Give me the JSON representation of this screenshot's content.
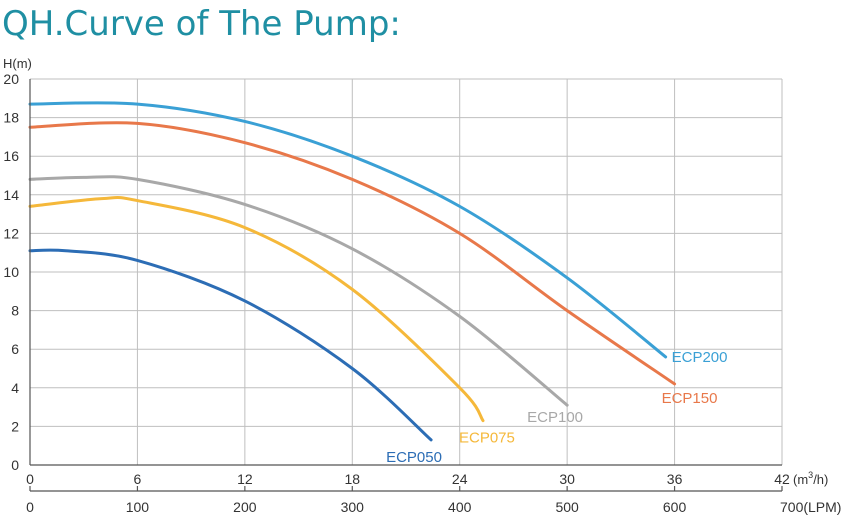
{
  "chart_data": {
    "type": "line",
    "title": "QH.Curve of The Pump:",
    "ylabel": "H(m)",
    "xlabel_m3h": [
      "(m",
      "3",
      "/h)"
    ],
    "xlabel_lpm": "(LPM)",
    "ylim": [
      0,
      20
    ],
    "xlim_m3h": [
      0,
      42
    ],
    "xlim_lpm": [
      0,
      700
    ],
    "yticks": [
      "0",
      "2",
      "4",
      "6",
      "8",
      "10",
      "12",
      "14",
      "16",
      "18",
      "20"
    ],
    "xticks_m3h": [
      "0",
      "6",
      "12",
      "18",
      "24",
      "30",
      "36",
      "42"
    ],
    "xticks_lpm": [
      "0",
      "100",
      "200",
      "300",
      "400",
      "500",
      "600",
      "700"
    ],
    "grid": true,
    "series": [
      {
        "name": "ECP050",
        "color": "#2c6db5",
        "points": [
          [
            0,
            11.1
          ],
          [
            2,
            11.1
          ],
          [
            6,
            10.6
          ],
          [
            12,
            8.5
          ],
          [
            18,
            5.0
          ],
          [
            22.4,
            1.3
          ]
        ]
      },
      {
        "name": "ECP075",
        "color": "#f5b83a",
        "points": [
          [
            0,
            13.4
          ],
          [
            4,
            13.8
          ],
          [
            6,
            13.7
          ],
          [
            12,
            12.3
          ],
          [
            18,
            9.1
          ],
          [
            24,
            4.0
          ],
          [
            25.3,
            2.3
          ]
        ]
      },
      {
        "name": "ECP100",
        "color": "#a8a8a8",
        "points": [
          [
            0,
            14.8
          ],
          [
            3,
            14.9
          ],
          [
            6,
            14.8
          ],
          [
            12,
            13.5
          ],
          [
            18,
            11.2
          ],
          [
            24,
            7.7
          ],
          [
            30,
            3.1
          ]
        ]
      },
      {
        "name": "ECP150",
        "color": "#e8784a",
        "points": [
          [
            0,
            17.5
          ],
          [
            6,
            17.7
          ],
          [
            12,
            16.7
          ],
          [
            18,
            14.8
          ],
          [
            24,
            12.0
          ],
          [
            30,
            8.0
          ],
          [
            36,
            4.2
          ]
        ]
      },
      {
        "name": "ECP200",
        "color": "#3aa0d5",
        "points": [
          [
            0,
            18.7
          ],
          [
            6,
            18.7
          ],
          [
            12,
            17.8
          ],
          [
            18,
            16.0
          ],
          [
            24,
            13.4
          ],
          [
            30,
            9.7
          ],
          [
            35.5,
            5.6
          ]
        ]
      }
    ]
  }
}
